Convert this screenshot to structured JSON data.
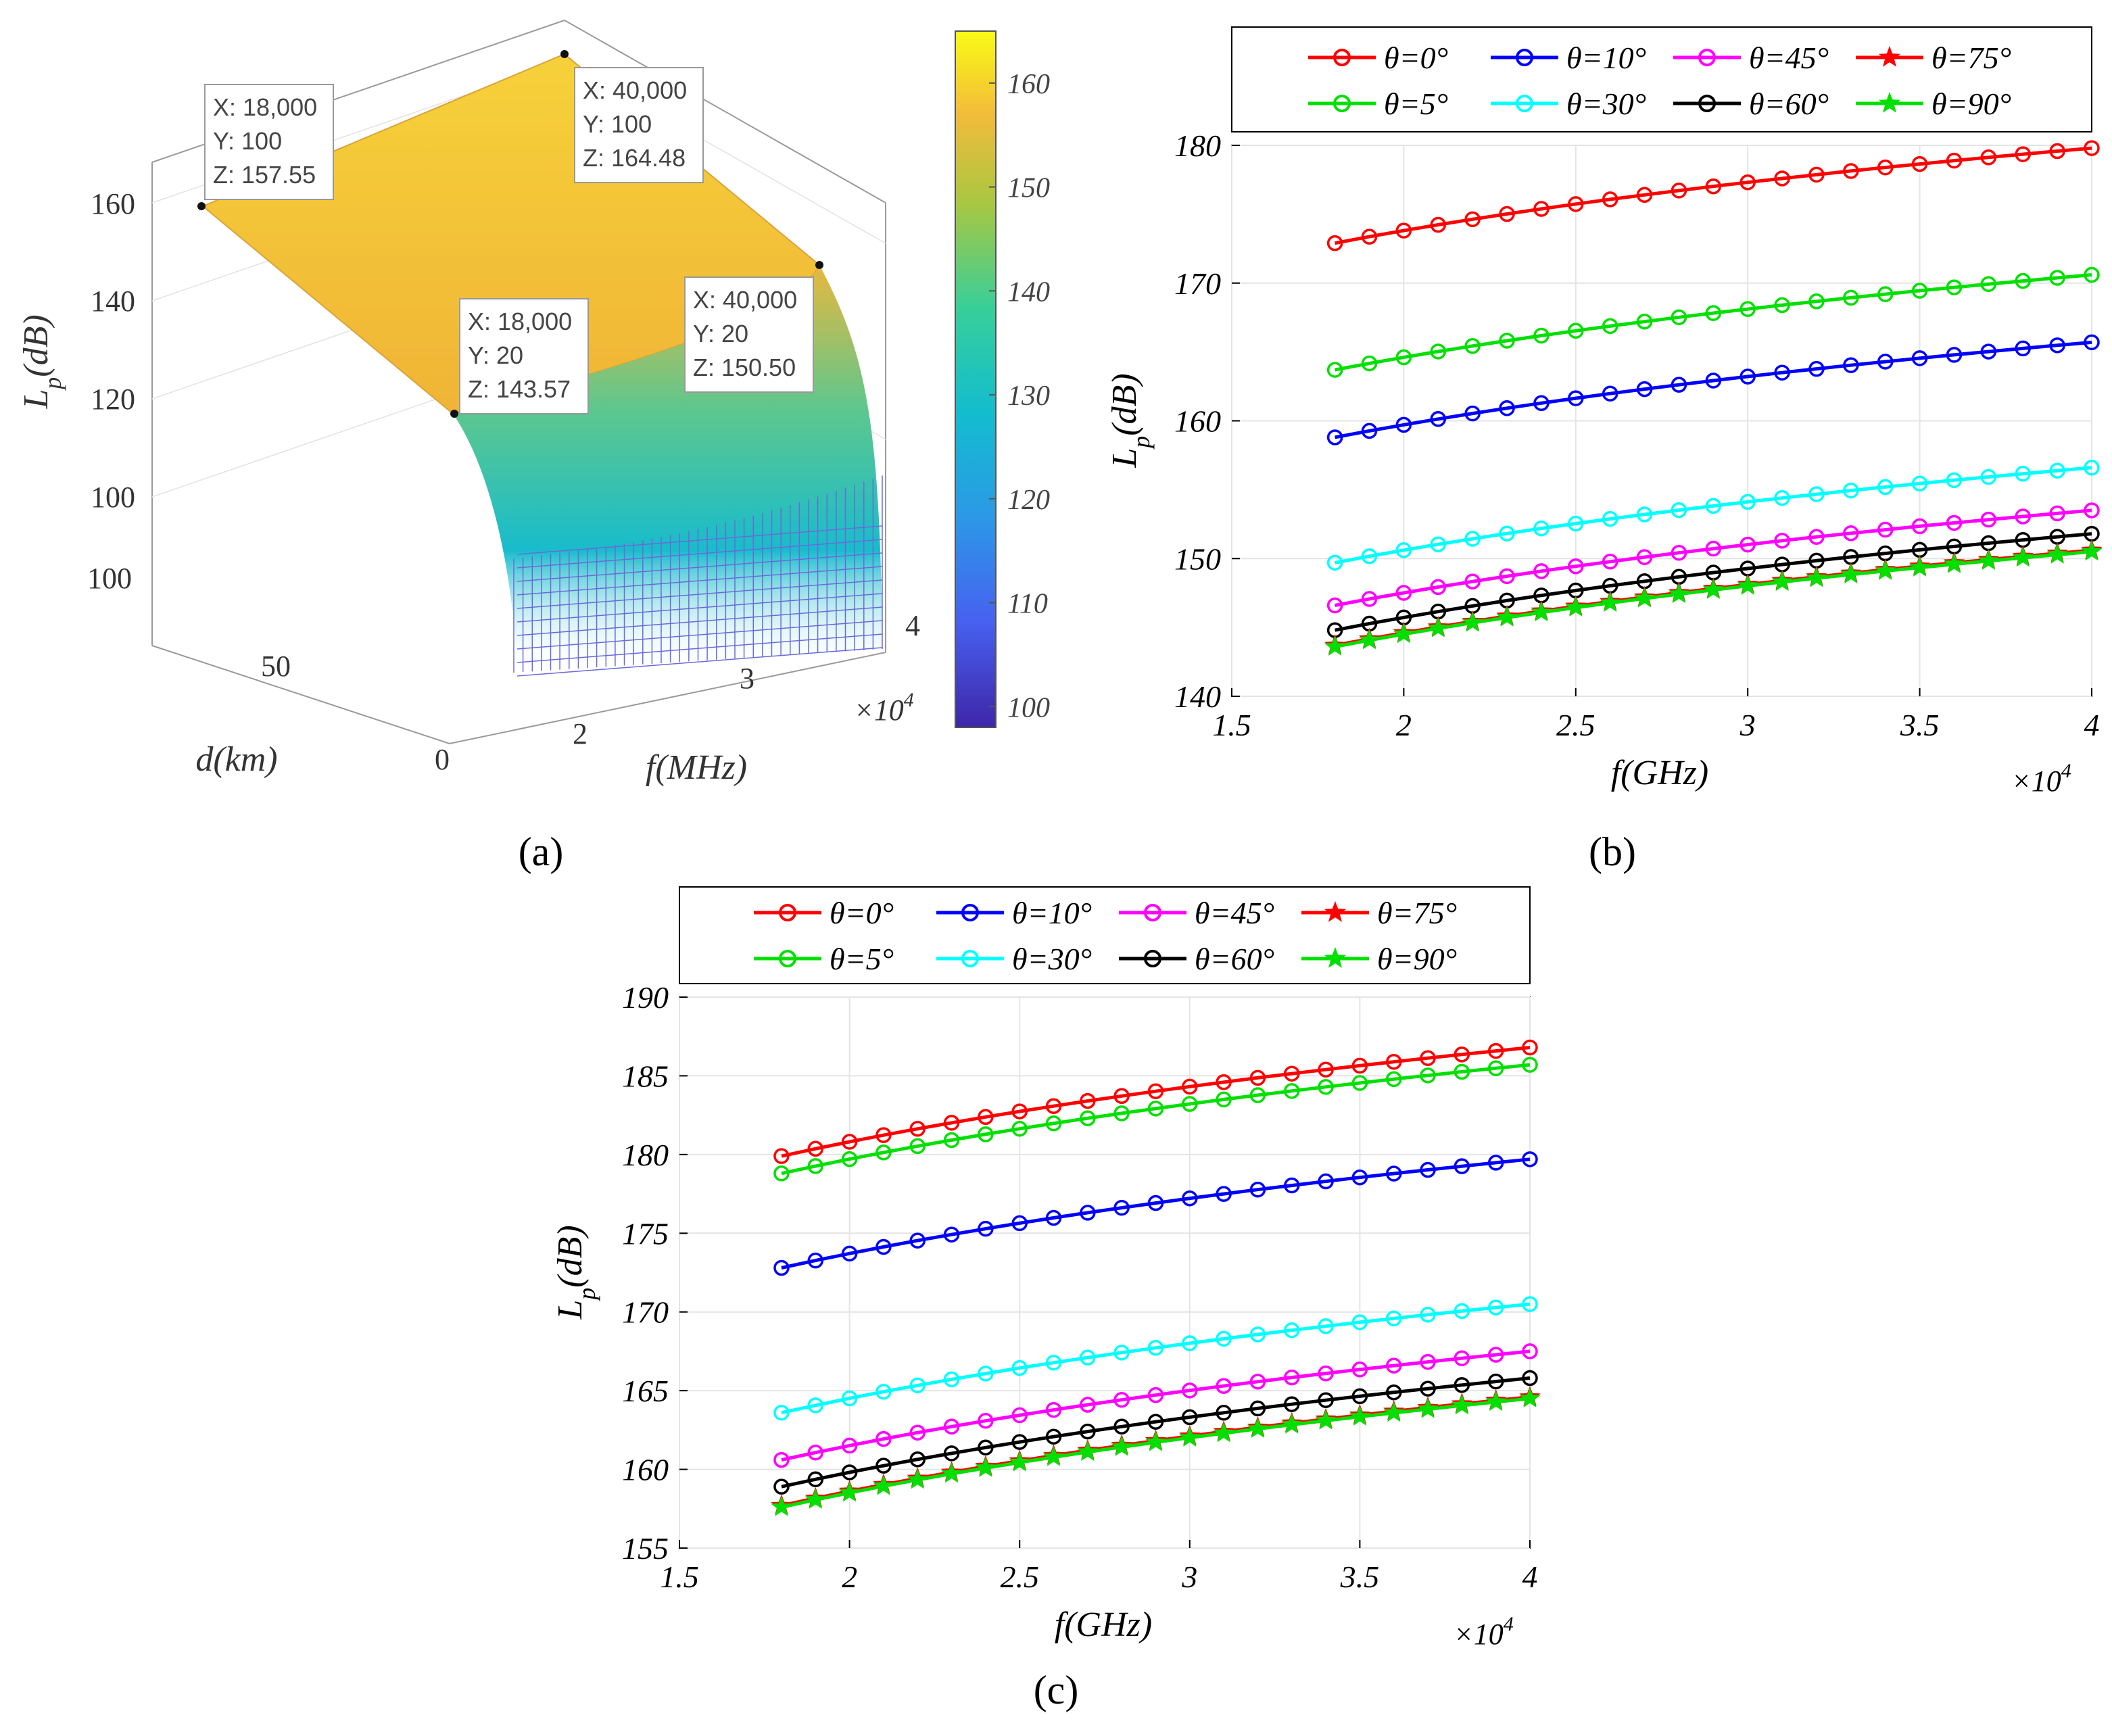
{
  "panels": {
    "a": {
      "caption": "(a)"
    },
    "b": {
      "caption": "(b)"
    },
    "c": {
      "caption": "(c)"
    }
  },
  "colors": {
    "theta_0": "#ff0000",
    "theta_5": "#00e000",
    "theta_10": "#0000ff",
    "theta_30": "#00ffff",
    "theta_45": "#ff00ff",
    "theta_60": "#000000",
    "theta_75": "#ff0000",
    "theta_90": "#00e000"
  },
  "chart_data": [
    {
      "id": "a",
      "type": "surface3d",
      "xlabel": "f(MHz)",
      "ylabel": "d(km)",
      "zlabel": "L_p(dB)",
      "x_multiplier": "×10^4",
      "x_ticks": [
        "2",
        "3",
        "4"
      ],
      "y_ticks": [
        "0",
        "50",
        "100"
      ],
      "z_ticks": [
        "100",
        "120",
        "140",
        "160"
      ],
      "colorbar": {
        "ticks": [
          "100",
          "110",
          "120",
          "130",
          "140",
          "150",
          "160"
        ],
        "range": [
          98,
          165
        ]
      },
      "datatips": [
        {
          "lines": [
            "X: 18,000",
            "Y: 100",
            "Z: 157.55"
          ]
        },
        {
          "lines": [
            "X: 40,000",
            "Y: 100",
            "Z: 164.48"
          ]
        },
        {
          "lines": [
            "X: 18,000",
            "Y: 20",
            "Z: 143.57"
          ]
        },
        {
          "lines": [
            "X: 40,000",
            "Y: 20",
            "Z: 150.50"
          ]
        }
      ]
    },
    {
      "id": "b",
      "type": "line",
      "xlabel": "f(GHz)",
      "ylabel": "L_p(dB)",
      "x_multiplier": "×10^4",
      "xlim": [
        1.5,
        4
      ],
      "ylim": [
        140,
        180
      ],
      "x_ticks": [
        1.5,
        2,
        2.5,
        3,
        3.5,
        4
      ],
      "y_ticks": [
        140,
        150,
        160,
        170,
        180
      ],
      "grid": true,
      "legend_position": "top",
      "x_start": 1.8,
      "x_end": 4.0,
      "x_step": 0.1,
      "series": [
        {
          "name": "θ=0°",
          "color_key": "theta_0",
          "marker": "circle",
          "y_start": 172.9,
          "y_end": 179.8
        },
        {
          "name": "θ=10°",
          "color_key": "theta_10",
          "marker": "circle",
          "y_start": 158.8,
          "y_end": 165.7
        },
        {
          "name": "θ=45°",
          "color_key": "theta_45",
          "marker": "circle",
          "y_start": 146.6,
          "y_end": 153.5
        },
        {
          "name": "θ=75°",
          "color_key": "theta_75",
          "marker": "star",
          "y_start": 143.7,
          "y_end": 150.6
        },
        {
          "name": "θ=5°",
          "color_key": "theta_5",
          "marker": "circle",
          "y_start": 163.7,
          "y_end": 170.6
        },
        {
          "name": "θ=30°",
          "color_key": "theta_30",
          "marker": "circle",
          "y_start": 149.7,
          "y_end": 156.6
        },
        {
          "name": "θ=60°",
          "color_key": "theta_60",
          "marker": "circle",
          "y_start": 144.8,
          "y_end": 151.8
        },
        {
          "name": "θ=90°",
          "color_key": "theta_90",
          "marker": "star",
          "y_start": 143.6,
          "y_end": 150.5
        }
      ]
    },
    {
      "id": "c",
      "type": "line",
      "xlabel": "f(GHz)",
      "ylabel": "L_p(dB)",
      "x_multiplier": "×10^4",
      "xlim": [
        1.5,
        4
      ],
      "ylim": [
        155,
        190
      ],
      "x_ticks": [
        1.5,
        2,
        2.5,
        3,
        3.5,
        4
      ],
      "y_ticks": [
        155,
        160,
        165,
        170,
        175,
        180,
        185,
        190
      ],
      "grid": true,
      "legend_position": "top",
      "x_start": 1.8,
      "x_end": 4.0,
      "x_step": 0.1,
      "series": [
        {
          "name": "θ=0°",
          "color_key": "theta_0",
          "marker": "circle",
          "y_start": 179.9,
          "y_end": 186.8
        },
        {
          "name": "θ=10°",
          "color_key": "theta_10",
          "marker": "circle",
          "y_start": 172.8,
          "y_end": 179.7
        },
        {
          "name": "θ=45°",
          "color_key": "theta_45",
          "marker": "circle",
          "y_start": 160.6,
          "y_end": 167.5
        },
        {
          "name": "θ=75°",
          "color_key": "theta_75",
          "marker": "star",
          "y_start": 157.7,
          "y_end": 164.6
        },
        {
          "name": "θ=5°",
          "color_key": "theta_5",
          "marker": "circle",
          "y_start": 178.8,
          "y_end": 185.7
        },
        {
          "name": "θ=30°",
          "color_key": "theta_30",
          "marker": "circle",
          "y_start": 163.6,
          "y_end": 170.5
        },
        {
          "name": "θ=60°",
          "color_key": "theta_60",
          "marker": "circle",
          "y_start": 158.9,
          "y_end": 165.8
        },
        {
          "name": "θ=90°",
          "color_key": "theta_90",
          "marker": "star",
          "y_start": 157.6,
          "y_end": 164.5
        }
      ]
    }
  ]
}
